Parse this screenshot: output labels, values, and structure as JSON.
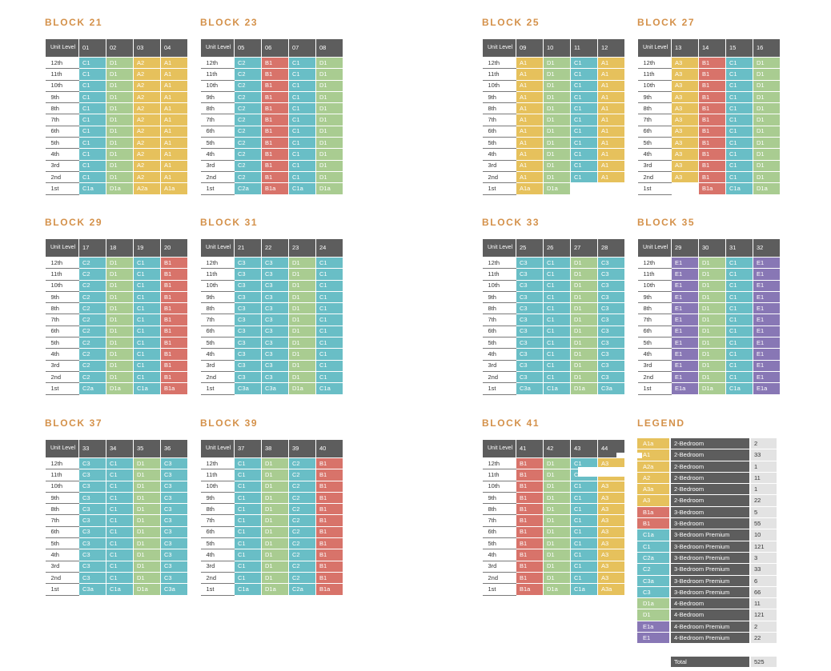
{
  "header_label": "Unit Level",
  "levels": [
    "12th",
    "11th",
    "10th",
    "9th",
    "8th",
    "7th",
    "6th",
    "5th",
    "4th",
    "3rd",
    "2nd",
    "1st"
  ],
  "blocks": [
    {
      "title": "BLOCK 21",
      "units": [
        "01",
        "02",
        "03",
        "04"
      ],
      "types": [
        "C1",
        "D1",
        "A2",
        "A1"
      ],
      "first": [
        "C1a",
        "D1a",
        "A2a",
        "A1a"
      ]
    },
    {
      "title": "BLOCK 23",
      "units": [
        "05",
        "06",
        "07",
        "08"
      ],
      "types": [
        "C2",
        "B1",
        "C1",
        "D1"
      ],
      "first": [
        "C2a",
        "B1a",
        "C1a",
        "D1a"
      ]
    },
    {
      "title": "BLOCK 25",
      "units": [
        "09",
        "10",
        "11",
        "12"
      ],
      "types": [
        "A1",
        "D1",
        "C1",
        "A1"
      ],
      "first": [
        "A1a",
        "D1a",
        "",
        ""
      ]
    },
    {
      "title": "BLOCK 27",
      "units": [
        "13",
        "14",
        "15",
        "16"
      ],
      "types": [
        "A3",
        "B1",
        "C1",
        "D1"
      ],
      "first": [
        "",
        "B1a",
        "C1a",
        "D1a"
      ]
    },
    {
      "title": "BLOCK 29",
      "units": [
        "17",
        "18",
        "19",
        "20"
      ],
      "types": [
        "C2",
        "D1",
        "C1",
        "B1"
      ],
      "first": [
        "C2a",
        "D1a",
        "C1a",
        "B1a"
      ]
    },
    {
      "title": "BLOCK 31",
      "units": [
        "21",
        "22",
        "23",
        "24"
      ],
      "types": [
        "C3",
        "C3",
        "D1",
        "C1"
      ],
      "first": [
        "C3a",
        "C3a",
        "D1a",
        "C1a"
      ]
    },
    {
      "title": "BLOCK 33",
      "units": [
        "25",
        "26",
        "27",
        "28"
      ],
      "types": [
        "C3",
        "C1",
        "D1",
        "C3"
      ],
      "first": [
        "C3a",
        "C1a",
        "D1a",
        "C3a"
      ]
    },
    {
      "title": "BLOCK 35",
      "units": [
        "29",
        "30",
        "31",
        "32"
      ],
      "types": [
        "E1",
        "D1",
        "C1",
        "E1"
      ],
      "first": [
        "E1a",
        "D1a",
        "C1a",
        "E1a"
      ]
    },
    {
      "title": "BLOCK 37",
      "units": [
        "33",
        "34",
        "35",
        "36"
      ],
      "types": [
        "C3",
        "C1",
        "D1",
        "C3"
      ],
      "first": [
        "C3a",
        "C1a",
        "D1a",
        "C3a"
      ]
    },
    {
      "title": "BLOCK 39",
      "units": [
        "37",
        "38",
        "39",
        "40"
      ],
      "types": [
        "C1",
        "D1",
        "C2",
        "B1"
      ],
      "first": [
        "C1a",
        "D1a",
        "C2a",
        "B1a"
      ]
    },
    {
      "title": "BLOCK 41",
      "units": [
        "41",
        "42",
        "43",
        "44"
      ],
      "types": [
        "B1",
        "D1",
        "C1",
        "A3"
      ],
      "first": [
        "B1a",
        "D1a",
        "C1a",
        "A3a"
      ]
    }
  ],
  "legend": {
    "title": "LEGEND",
    "rows": [
      {
        "code": "A1a",
        "type": "2-Bedroom",
        "count": "2"
      },
      {
        "code": "A1",
        "type": "2-Bedroom",
        "count": "33"
      },
      {
        "code": "A2a",
        "type": "2-Bedroom",
        "count": "1"
      },
      {
        "code": "A2",
        "type": "2-Bedroom",
        "count": "11"
      },
      {
        "code": "A3a",
        "type": "2-Bedroom",
        "count": "1"
      },
      {
        "code": "A3",
        "type": "2-Bedroom",
        "count": "22"
      },
      {
        "code": "B1a",
        "type": "3-Bedroom",
        "count": "5"
      },
      {
        "code": "B1",
        "type": "3-Bedroom",
        "count": "55"
      },
      {
        "code": "C1a",
        "type": "3-Bedroom Premium",
        "count": "10"
      },
      {
        "code": "C1",
        "type": "3-Bedroom Premium",
        "count": "121"
      },
      {
        "code": "C2a",
        "type": "3-Bedroom Premium",
        "count": "3"
      },
      {
        "code": "C2",
        "type": "3-Bedroom Premium",
        "count": "33"
      },
      {
        "code": "C3a",
        "type": "3-Bedroom Premium",
        "count": "6"
      },
      {
        "code": "C3",
        "type": "3-Bedroom Premium",
        "count": "66"
      },
      {
        "code": "D1a",
        "type": "4-Bedroom",
        "count": "11"
      },
      {
        "code": "D1",
        "type": "4-Bedroom",
        "count": "121"
      },
      {
        "code": "E1a",
        "type": "4-Bedroom Premium",
        "count": "2"
      },
      {
        "code": "E1",
        "type": "4-Bedroom Premium",
        "count": "22"
      }
    ],
    "total_label": "Total",
    "total_value": "525"
  }
}
